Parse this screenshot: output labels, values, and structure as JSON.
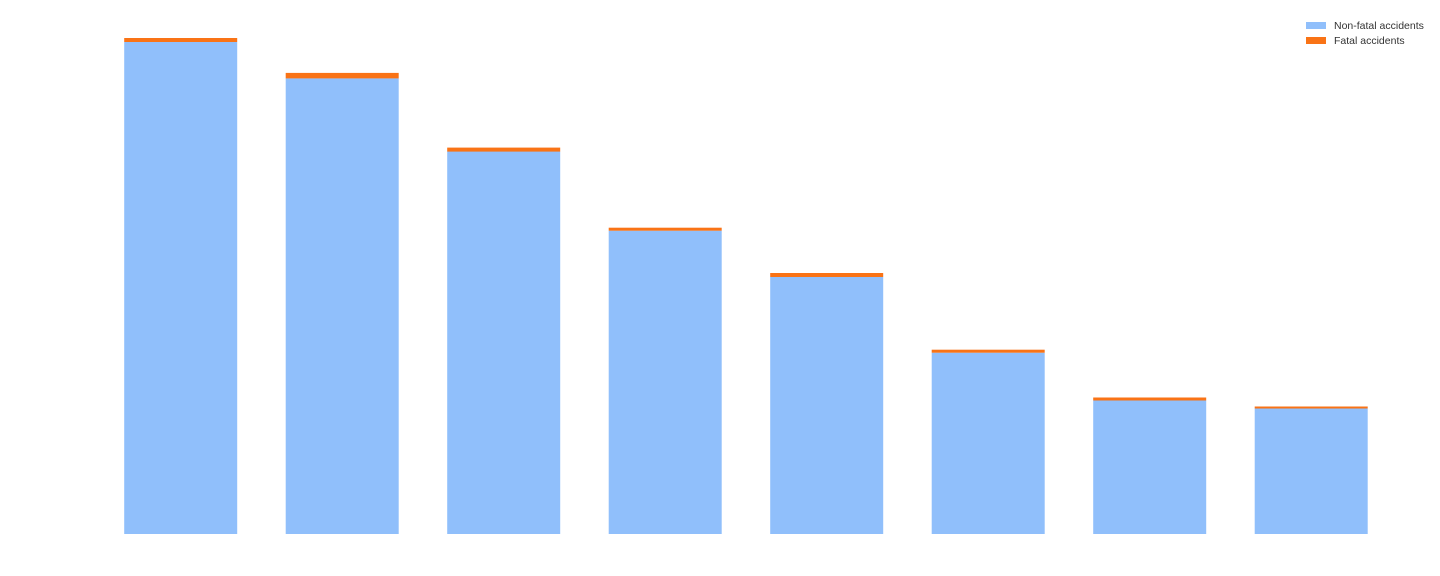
{
  "chart_data": {
    "type": "bar",
    "stacked": true,
    "categories": [
      "",
      "",
      "",
      "",
      "",
      "",
      "",
      ""
    ],
    "series": [
      {
        "name": "Non-fatal accidents",
        "color": "#90bffb",
        "values": [
          988,
          915,
          768,
          609,
          516,
          364,
          268,
          252
        ]
      },
      {
        "name": "Fatal accidents",
        "color": "#f97316",
        "values": [
          8,
          11,
          8,
          6,
          8,
          6,
          6,
          4
        ]
      }
    ],
    "ylim": [
      0,
      1000
    ],
    "grid": false,
    "legend_position": "top-right"
  }
}
